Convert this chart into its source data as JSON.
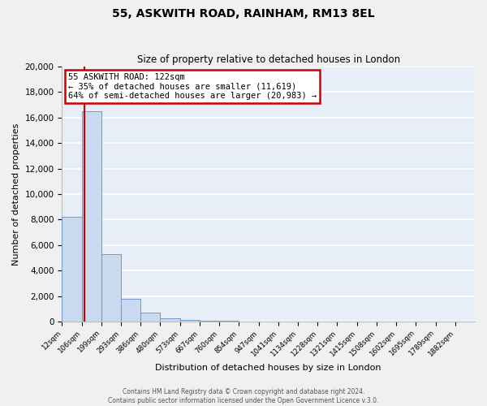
{
  "title": "55, ASKWITH ROAD, RAINHAM, RM13 8EL",
  "subtitle": "Size of property relative to detached houses in London",
  "xlabel": "Distribution of detached houses by size in London",
  "ylabel": "Number of detached properties",
  "bar_color": "#c9d9f0",
  "bar_edge_color": "#7098c8",
  "bg_color": "#e8eef8",
  "fig_bg_color": "#f0f0f0",
  "grid_color": "#ffffff",
  "annotation_box_color": "#cc0000",
  "vline_color": "#cc0000",
  "bin_labels": [
    "12sqm",
    "106sqm",
    "199sqm",
    "293sqm",
    "386sqm",
    "480sqm",
    "573sqm",
    "667sqm",
    "760sqm",
    "854sqm",
    "947sqm",
    "1041sqm",
    "1134sqm",
    "1228sqm",
    "1321sqm",
    "1415sqm",
    "1508sqm",
    "1602sqm",
    "1695sqm",
    "1789sqm",
    "1882sqm"
  ],
  "bar_values": [
    8200,
    16500,
    5300,
    1750,
    700,
    250,
    150,
    80,
    50,
    0,
    0,
    0,
    0,
    0,
    0,
    0,
    0,
    0,
    0,
    0,
    0
  ],
  "property_label": "55 ASKWITH ROAD: 122sqm",
  "pct_smaller": 35,
  "n_smaller": "11,619",
  "pct_larger_semi": 64,
  "n_larger_semi": "20,983",
  "vline_x": 1.15,
  "ylim": [
    0,
    20000
  ],
  "yticks": [
    0,
    2000,
    4000,
    6000,
    8000,
    10000,
    12000,
    14000,
    16000,
    18000,
    20000
  ],
  "footer_line1": "Contains HM Land Registry data © Crown copyright and database right 2024.",
  "footer_line2": "Contains public sector information licensed under the Open Government Licence v.3.0."
}
